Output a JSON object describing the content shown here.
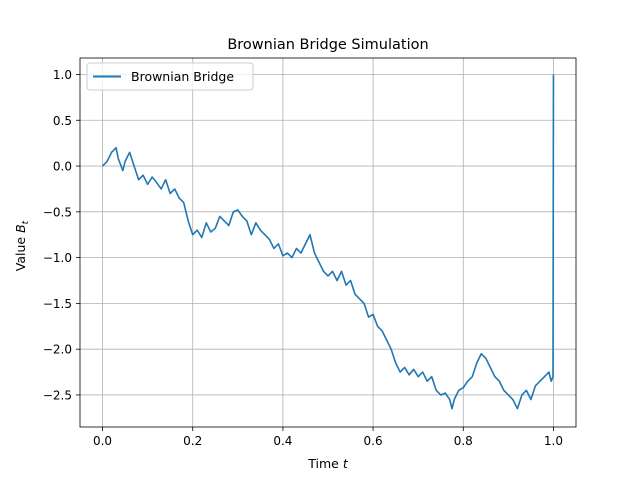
{
  "chart_data": {
    "type": "line",
    "title": "Brownian Bridge Simulation",
    "xlabel": "Time t",
    "ylabel": "Value B_t",
    "xlim": [
      -0.05,
      1.05
    ],
    "ylim": [
      -2.85,
      1.18
    ],
    "xticks": [
      0.0,
      0.2,
      0.4,
      0.6,
      0.8,
      1.0
    ],
    "xtick_labels": [
      "0.0",
      "0.2",
      "0.4",
      "0.6",
      "0.8",
      "1.0"
    ],
    "yticks": [
      1.0,
      0.5,
      0.0,
      -0.5,
      -1.0,
      -1.5,
      -2.0,
      -2.5
    ],
    "ytick_labels": [
      "1.0",
      "0.5",
      "0.0",
      "−0.5",
      "−1.0",
      "−1.5",
      "−2.0",
      "−2.5"
    ],
    "grid": true,
    "legend": {
      "position": "top-left",
      "entries": [
        "Brownian Bridge"
      ]
    },
    "series": [
      {
        "name": "Brownian Bridge",
        "color": "#1f77b4",
        "points": [
          [
            0.0,
            0.0
          ],
          [
            0.01,
            0.05
          ],
          [
            0.02,
            0.15
          ],
          [
            0.03,
            0.2
          ],
          [
            0.035,
            0.08
          ],
          [
            0.045,
            -0.05
          ],
          [
            0.05,
            0.05
          ],
          [
            0.06,
            0.15
          ],
          [
            0.07,
            0.0
          ],
          [
            0.08,
            -0.15
          ],
          [
            0.09,
            -0.1
          ],
          [
            0.1,
            -0.2
          ],
          [
            0.11,
            -0.12
          ],
          [
            0.12,
            -0.18
          ],
          [
            0.13,
            -0.25
          ],
          [
            0.14,
            -0.15
          ],
          [
            0.15,
            -0.3
          ],
          [
            0.16,
            -0.25
          ],
          [
            0.17,
            -0.35
          ],
          [
            0.18,
            -0.4
          ],
          [
            0.19,
            -0.6
          ],
          [
            0.2,
            -0.75
          ],
          [
            0.21,
            -0.7
          ],
          [
            0.22,
            -0.78
          ],
          [
            0.23,
            -0.62
          ],
          [
            0.24,
            -0.72
          ],
          [
            0.25,
            -0.68
          ],
          [
            0.26,
            -0.55
          ],
          [
            0.27,
            -0.6
          ],
          [
            0.28,
            -0.65
          ],
          [
            0.29,
            -0.5
          ],
          [
            0.3,
            -0.48
          ],
          [
            0.31,
            -0.55
          ],
          [
            0.32,
            -0.6
          ],
          [
            0.33,
            -0.75
          ],
          [
            0.34,
            -0.62
          ],
          [
            0.35,
            -0.7
          ],
          [
            0.36,
            -0.75
          ],
          [
            0.37,
            -0.8
          ],
          [
            0.38,
            -0.9
          ],
          [
            0.39,
            -0.85
          ],
          [
            0.4,
            -0.98
          ],
          [
            0.41,
            -0.95
          ],
          [
            0.42,
            -1.0
          ],
          [
            0.43,
            -0.9
          ],
          [
            0.44,
            -0.95
          ],
          [
            0.45,
            -0.85
          ],
          [
            0.46,
            -0.75
          ],
          [
            0.47,
            -0.95
          ],
          [
            0.48,
            -1.05
          ],
          [
            0.49,
            -1.15
          ],
          [
            0.5,
            -1.2
          ],
          [
            0.51,
            -1.15
          ],
          [
            0.52,
            -1.25
          ],
          [
            0.53,
            -1.15
          ],
          [
            0.54,
            -1.3
          ],
          [
            0.55,
            -1.25
          ],
          [
            0.56,
            -1.4
          ],
          [
            0.57,
            -1.45
          ],
          [
            0.58,
            -1.5
          ],
          [
            0.59,
            -1.65
          ],
          [
            0.6,
            -1.62
          ],
          [
            0.61,
            -1.75
          ],
          [
            0.62,
            -1.8
          ],
          [
            0.63,
            -1.9
          ],
          [
            0.64,
            -2.0
          ],
          [
            0.65,
            -2.15
          ],
          [
            0.66,
            -2.25
          ],
          [
            0.67,
            -2.2
          ],
          [
            0.68,
            -2.28
          ],
          [
            0.69,
            -2.22
          ],
          [
            0.7,
            -2.3
          ],
          [
            0.71,
            -2.25
          ],
          [
            0.72,
            -2.35
          ],
          [
            0.73,
            -2.3
          ],
          [
            0.74,
            -2.45
          ],
          [
            0.75,
            -2.5
          ],
          [
            0.76,
            -2.48
          ],
          [
            0.77,
            -2.55
          ],
          [
            0.775,
            -2.65
          ],
          [
            0.78,
            -2.55
          ],
          [
            0.79,
            -2.45
          ],
          [
            0.8,
            -2.42
          ],
          [
            0.81,
            -2.35
          ],
          [
            0.82,
            -2.3
          ],
          [
            0.83,
            -2.15
          ],
          [
            0.84,
            -2.05
          ],
          [
            0.85,
            -2.1
          ],
          [
            0.86,
            -2.2
          ],
          [
            0.87,
            -2.3
          ],
          [
            0.88,
            -2.35
          ],
          [
            0.89,
            -2.45
          ],
          [
            0.9,
            -2.5
          ],
          [
            0.91,
            -2.55
          ],
          [
            0.92,
            -2.65
          ],
          [
            0.93,
            -2.5
          ],
          [
            0.94,
            -2.45
          ],
          [
            0.95,
            -2.55
          ],
          [
            0.96,
            -2.4
          ],
          [
            0.97,
            -2.35
          ],
          [
            0.98,
            -2.3
          ],
          [
            0.99,
            -2.25
          ],
          [
            0.995,
            -2.35
          ],
          [
            0.999,
            -2.3
          ],
          [
            1.0,
            1.0
          ]
        ]
      }
    ]
  }
}
